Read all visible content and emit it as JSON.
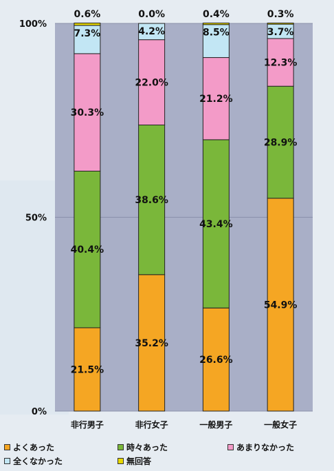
{
  "chart_data": {
    "type": "bar",
    "stacked": true,
    "percent": true,
    "categories": [
      "非行男子",
      "非行女子",
      "一般男子",
      "一般女子"
    ],
    "ylim": [
      0,
      100
    ],
    "yticks": [
      {
        "value": 0,
        "label": "0%"
      },
      {
        "value": 50,
        "label": "50%"
      },
      {
        "value": 100,
        "label": "100%"
      }
    ],
    "series": [
      {
        "name": "よくあった",
        "color": "#f5a623",
        "values": [
          21.5,
          35.2,
          26.6,
          54.9
        ],
        "labels": [
          "21.5%",
          "35.2%",
          "26.6%",
          "54.9%"
        ]
      },
      {
        "name": "時々あった",
        "color": "#7ab73a",
        "values": [
          40.4,
          38.6,
          43.4,
          28.9
        ],
        "labels": [
          "40.4%",
          "38.6%",
          "43.4%",
          "28.9%"
        ]
      },
      {
        "name": "あまりなかった",
        "color": "#f39bc8",
        "values": [
          30.3,
          22.0,
          21.2,
          12.3
        ],
        "labels": [
          "30.3%",
          "22.0%",
          "21.2%",
          "12.3%"
        ]
      },
      {
        "name": "全くなかった",
        "color": "#c2e6f4",
        "values": [
          7.3,
          4.2,
          8.5,
          3.7
        ],
        "labels": [
          "7.3%",
          "4.2%",
          "8.5%",
          "3.7%"
        ]
      },
      {
        "name": "無回答",
        "color": "#e8d800",
        "values": [
          0.6,
          0.0,
          0.4,
          0.3
        ],
        "labels": [
          "0.6%",
          "0.0%",
          "0.4%",
          "0.3%"
        ]
      }
    ],
    "legend_position": "bottom",
    "grid": true,
    "plot_background": "#a9afc7"
  }
}
